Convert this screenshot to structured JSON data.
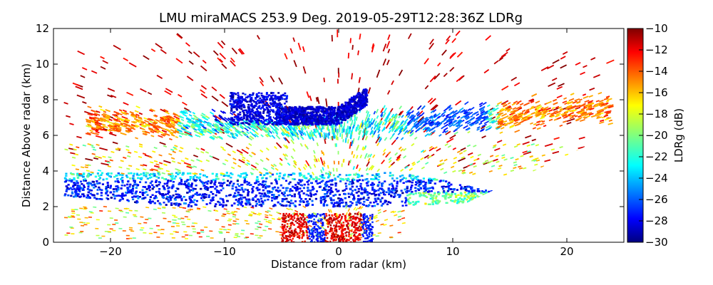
{
  "chart_data": {
    "type": "heatmap",
    "title": "LMU miraMACS 253.9 Deg. 2019-05-29T12:28:36Z  LDRg",
    "xlabel": "Distance from radar (km)",
    "ylabel": "Distance Above radar  (km)",
    "xlim": [
      -25,
      25
    ],
    "ylim": [
      0,
      12
    ],
    "x_ticks": [
      -20,
      -10,
      0,
      10,
      20
    ],
    "x_tick_labels": [
      "−20",
      "−10",
      "0",
      "10",
      "20"
    ],
    "y_ticks": [
      0,
      2,
      4,
      6,
      8,
      10,
      12
    ],
    "y_tick_labels": [
      "0",
      "2",
      "4",
      "6",
      "8",
      "10",
      "12"
    ],
    "colorbar": {
      "label": "LDRg (dB)",
      "range": [
        -30,
        -10
      ],
      "ticks": [
        -10,
        -12,
        -14,
        -16,
        -18,
        -20,
        -22,
        -24,
        -26,
        -28,
        -30
      ],
      "tick_labels": [
        "−10",
        "−12",
        "−14",
        "−16",
        "−18",
        "−20",
        "−22",
        "−24",
        "−26",
        "−28",
        "−30"
      ],
      "colormap": "jet"
    },
    "features": [
      {
        "region": "lower cloud band",
        "x_range": [
          -24,
          14
        ],
        "y_range": [
          1.8,
          4.0
        ],
        "ldr_range": [
          -30,
          -20
        ]
      },
      {
        "region": "upper cloud layer",
        "x_range": [
          -22,
          24
        ],
        "y_range": [
          5.5,
          9.0
        ],
        "ldr_range": [
          -28,
          -14
        ]
      },
      {
        "region": "dense core near radar",
        "x_range": [
          -5,
          2.5
        ],
        "y_range": [
          6.6,
          8.6
        ],
        "ldr_range": [
          -30,
          -28
        ]
      },
      {
        "region": "near-ground clutter",
        "x_range": [
          -6,
          4
        ],
        "y_range": [
          0,
          1.8
        ],
        "ldr_range": [
          -14,
          -10
        ]
      }
    ]
  }
}
